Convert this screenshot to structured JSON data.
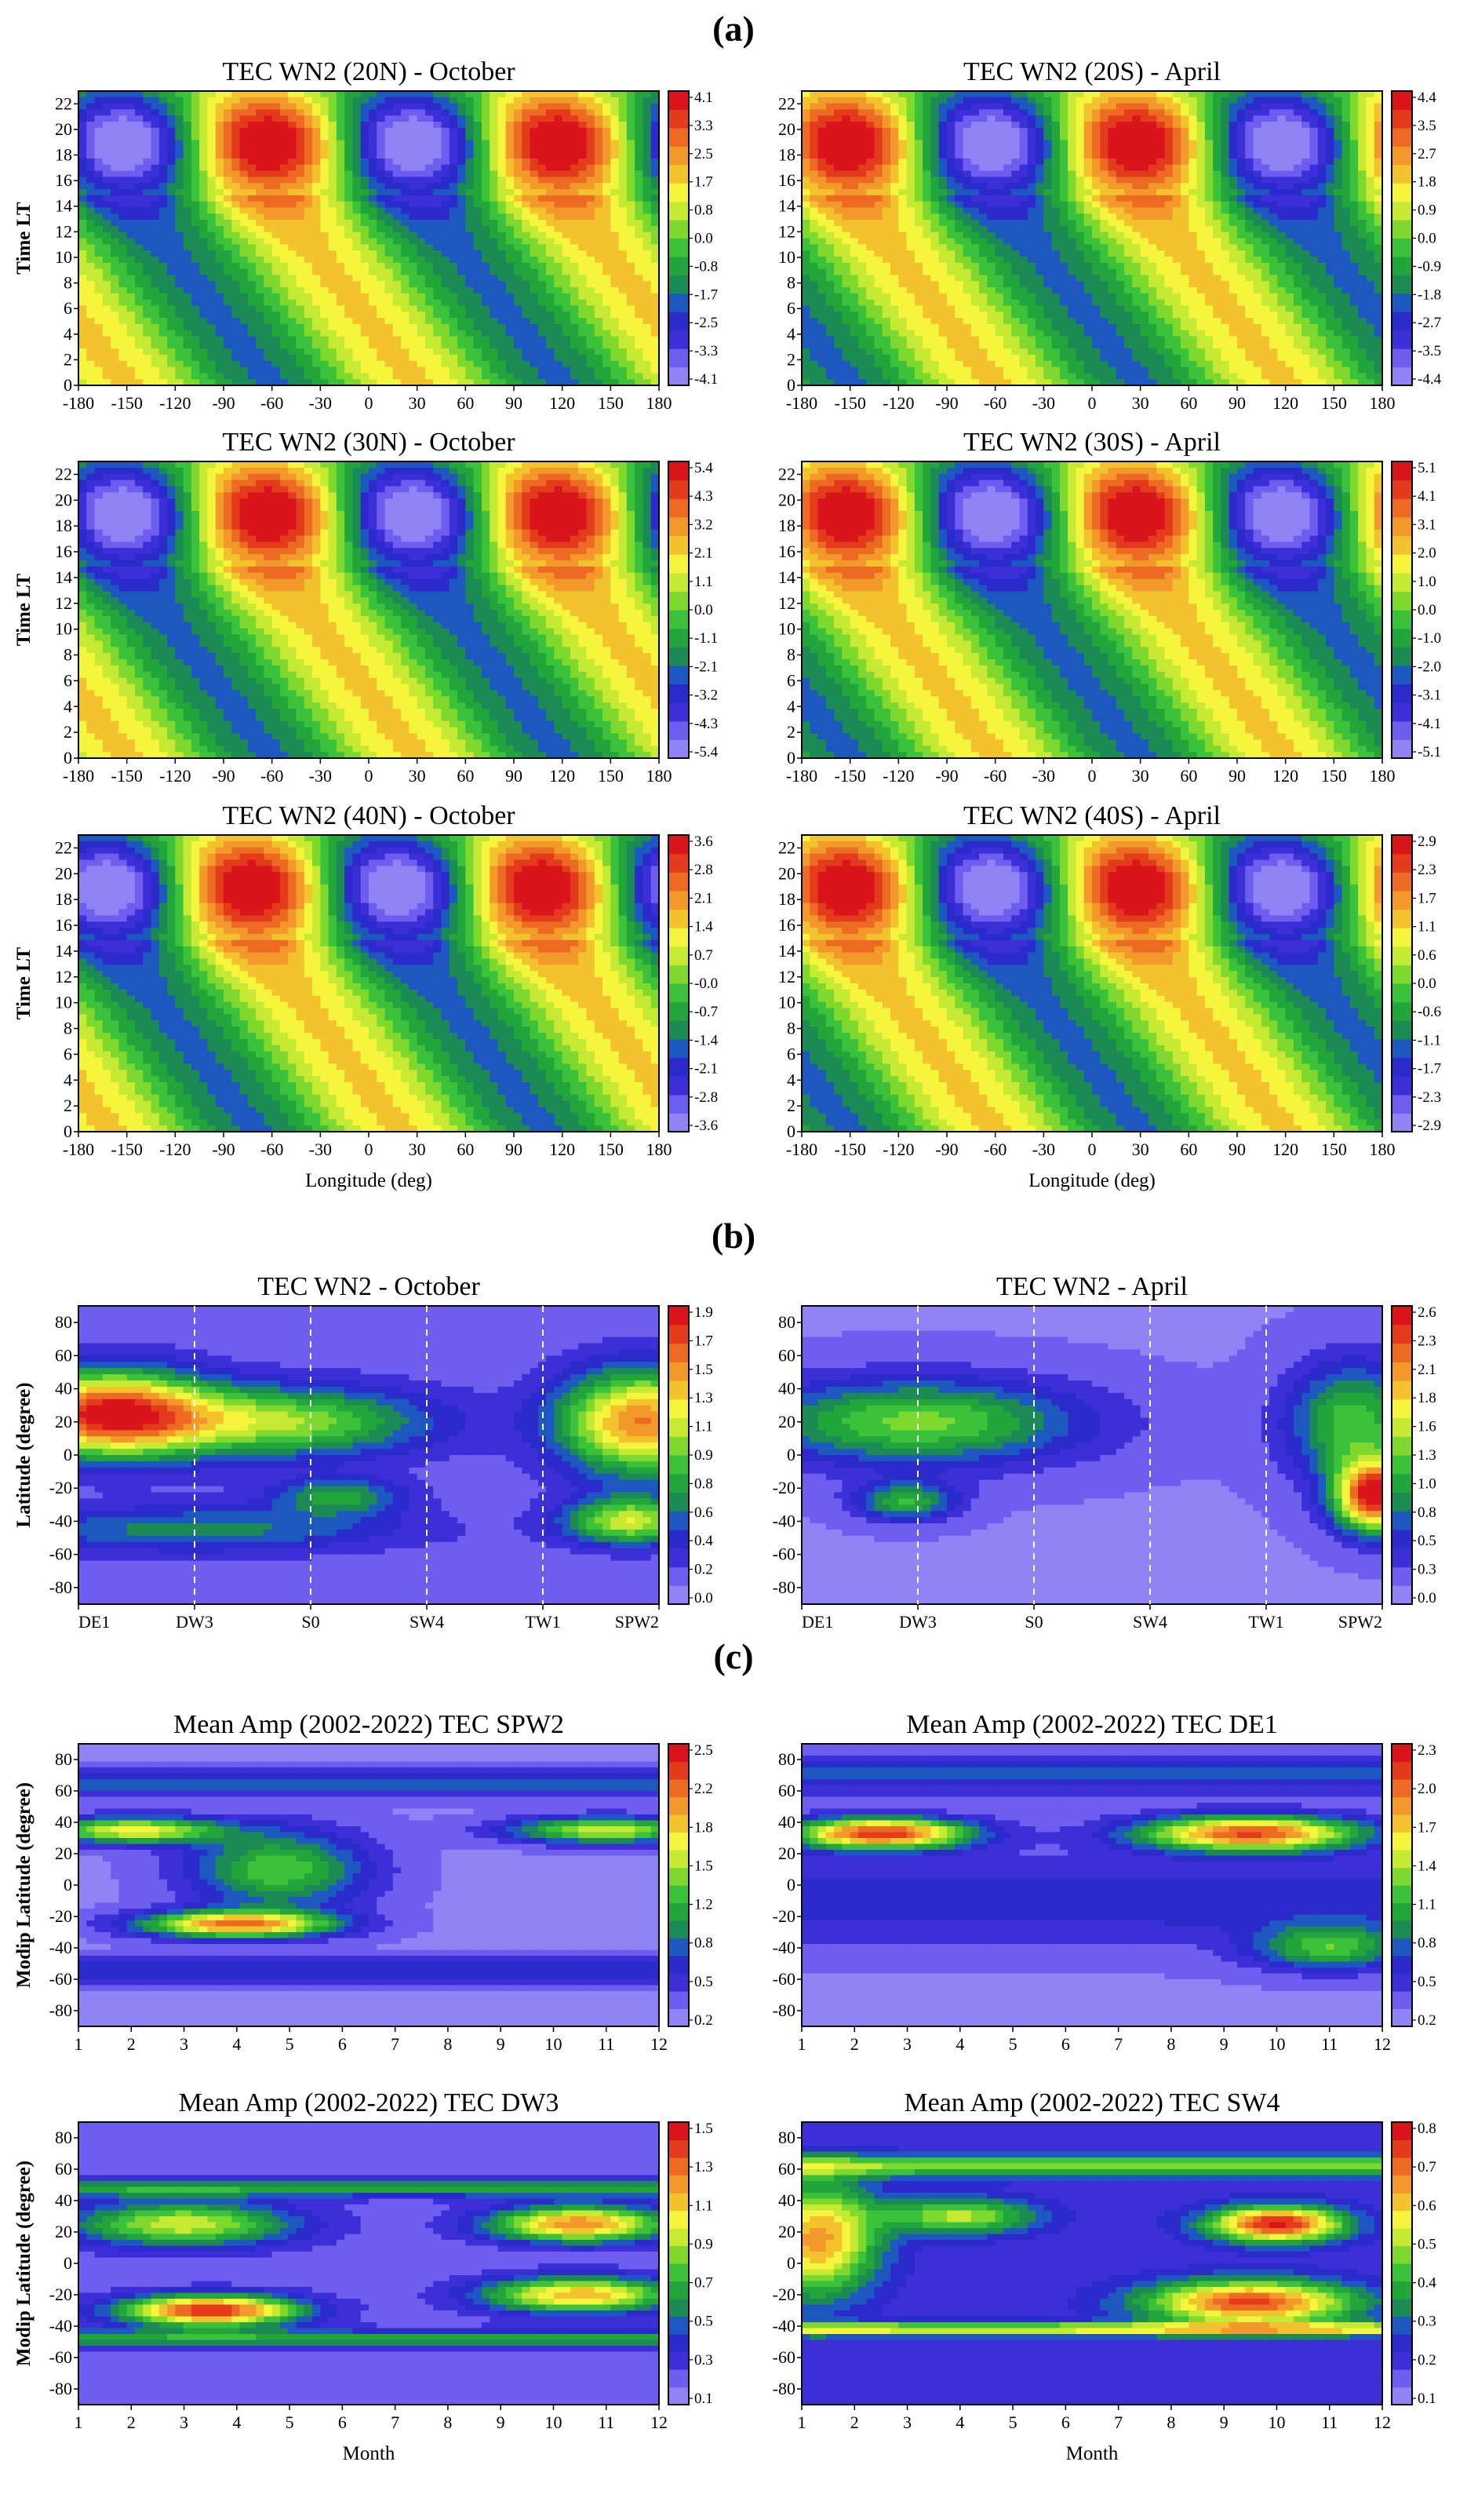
{
  "figure": {
    "section_labels": [
      "(a)",
      "(b)",
      "(c)"
    ]
  },
  "chart_data": [
    {
      "type": "heatmap",
      "title": "TEC WN2 (20N) - October",
      "ylabel": "Time LT",
      "xlabel": "",
      "xlim": [
        -180,
        180
      ],
      "ylim": [
        0,
        23
      ],
      "xticks": [
        "-180",
        "-150",
        "-120",
        "-90",
        "-60",
        "-30",
        "0",
        "30",
        "60",
        "90",
        "120",
        "150",
        "180"
      ],
      "yticks": [
        "0",
        "2",
        "4",
        "6",
        "8",
        "10",
        "12",
        "14",
        "16",
        "18",
        "20",
        "22"
      ],
      "colorbar": {
        "min": -4.1,
        "max": 4.1,
        "labels": [
          "-4.1",
          "-3.3",
          "-2.5",
          "-1.7",
          "-0.8",
          "0.0",
          "0.8",
          "1.7",
          "2.5",
          "3.3",
          "4.1"
        ]
      },
      "pattern": {
        "kind": "lt",
        "amp": 4.1,
        "phase": -60
      }
    },
    {
      "type": "heatmap",
      "title": "TEC WN2 (20S) - April",
      "ylabel": "",
      "xlabel": "",
      "xlim": [
        -180,
        180
      ],
      "ylim": [
        0,
        23
      ],
      "xticks": [
        "-180",
        "-150",
        "-120",
        "-90",
        "-60",
        "-30",
        "0",
        "30",
        "60",
        "90",
        "120",
        "150",
        "180"
      ],
      "yticks": [
        "0",
        "2",
        "4",
        "6",
        "8",
        "10",
        "12",
        "14",
        "16",
        "18",
        "20",
        "22"
      ],
      "colorbar": {
        "min": -4.4,
        "max": 4.4,
        "labels": [
          "-4.4",
          "-3.5",
          "-2.7",
          "-1.8",
          "-0.9",
          "0.0",
          "0.9",
          "1.8",
          "2.7",
          "3.5",
          "4.4"
        ]
      },
      "pattern": {
        "kind": "lt",
        "amp": 4.4,
        "phase": -150
      }
    },
    {
      "type": "heatmap",
      "title": "TEC WN2 (30N) - October",
      "ylabel": "Time LT",
      "xlabel": "",
      "xlim": [
        -180,
        180
      ],
      "ylim": [
        0,
        23
      ],
      "xticks": [
        "-180",
        "-150",
        "-120",
        "-90",
        "-60",
        "-30",
        "0",
        "30",
        "60",
        "90",
        "120",
        "150",
        "180"
      ],
      "yticks": [
        "0",
        "2",
        "4",
        "6",
        "8",
        "10",
        "12",
        "14",
        "16",
        "18",
        "20",
        "22"
      ],
      "colorbar": {
        "min": -5.4,
        "max": 5.4,
        "labels": [
          "-5.4",
          "-4.3",
          "-3.2",
          "-2.1",
          "-1.1",
          "0.0",
          "1.1",
          "2.1",
          "3.2",
          "4.3",
          "5.4"
        ]
      },
      "pattern": {
        "kind": "lt",
        "amp": 5.4,
        "phase": -60
      }
    },
    {
      "type": "heatmap",
      "title": "TEC WN2 (30S) - April",
      "ylabel": "",
      "xlabel": "",
      "xlim": [
        -180,
        180
      ],
      "ylim": [
        0,
        23
      ],
      "xticks": [
        "-180",
        "-150",
        "-120",
        "-90",
        "-60",
        "-30",
        "0",
        "30",
        "60",
        "90",
        "120",
        "150",
        "180"
      ],
      "yticks": [
        "0",
        "2",
        "4",
        "6",
        "8",
        "10",
        "12",
        "14",
        "16",
        "18",
        "20",
        "22"
      ],
      "colorbar": {
        "min": -5.1,
        "max": 5.1,
        "labels": [
          "-5.1",
          "-4.1",
          "-3.1",
          "-2.0",
          "-1.0",
          "0.0",
          "1.0",
          "2.0",
          "3.1",
          "4.1",
          "5.1"
        ]
      },
      "pattern": {
        "kind": "lt",
        "amp": 5.1,
        "phase": -150
      }
    },
    {
      "type": "heatmap",
      "title": "TEC WN2 (40N) - October",
      "ylabel": "Time LT",
      "xlabel": "Longitude (deg)",
      "xlim": [
        -180,
        180
      ],
      "ylim": [
        0,
        23
      ],
      "xticks": [
        "-180",
        "-150",
        "-120",
        "-90",
        "-60",
        "-30",
        "0",
        "30",
        "60",
        "90",
        "120",
        "150",
        "180"
      ],
      "yticks": [
        "0",
        "2",
        "4",
        "6",
        "8",
        "10",
        "12",
        "14",
        "16",
        "18",
        "20",
        "22"
      ],
      "colorbar": {
        "min": -3.6,
        "max": 3.6,
        "labels": [
          "-3.6",
          "-2.8",
          "-2.1",
          "-1.4",
          "-0.7",
          "-0.0",
          "0.7",
          "1.4",
          "2.1",
          "2.8",
          "3.6"
        ]
      },
      "pattern": {
        "kind": "lt",
        "amp": 3.6,
        "phase": -70
      }
    },
    {
      "type": "heatmap",
      "title": "TEC WN2 (40S) - April",
      "ylabel": "",
      "xlabel": "Longitude (deg)",
      "xlim": [
        -180,
        180
      ],
      "ylim": [
        0,
        23
      ],
      "xticks": [
        "-180",
        "-150",
        "-120",
        "-90",
        "-60",
        "-30",
        "0",
        "30",
        "60",
        "90",
        "120",
        "150",
        "180"
      ],
      "yticks": [
        "0",
        "2",
        "4",
        "6",
        "8",
        "10",
        "12",
        "14",
        "16",
        "18",
        "20",
        "22"
      ],
      "colorbar": {
        "min": -2.9,
        "max": 2.9,
        "labels": [
          "-2.9",
          "-2.3",
          "-1.7",
          "-1.1",
          "-0.6",
          "0.0",
          "0.6",
          "1.1",
          "1.7",
          "2.3",
          "2.9"
        ]
      },
      "pattern": {
        "kind": "lt",
        "amp": 2.9,
        "phase": -150
      }
    },
    {
      "type": "heatmap",
      "title": "TEC WN2 - October",
      "ylabel": "Latitude (degree)",
      "xlabel": "",
      "ylim": [
        -90,
        90
      ],
      "xticks": [
        "DE1",
        "DW3",
        "S0",
        "SW4",
        "TW1",
        "SPW2"
      ],
      "yticks": [
        "-80",
        "-60",
        "-40",
        "-20",
        "0",
        "20",
        "40",
        "60",
        "80"
      ],
      "colorbar": {
        "min": 0.0,
        "max": 2.0,
        "labels": [
          "0.0",
          "0.2",
          "0.4",
          "0.6",
          "0.8",
          "0.9",
          "1.1",
          "1.3",
          "1.5",
          "1.7",
          "1.9"
        ]
      },
      "pattern": {
        "kind": "spec",
        "amp": 1.9,
        "mode": 0
      }
    },
    {
      "type": "heatmap",
      "title": "TEC WN2 - April",
      "ylabel": "",
      "xlabel": "",
      "ylim": [
        -90,
        90
      ],
      "xticks": [
        "DE1",
        "DW3",
        "S0",
        "SW4",
        "TW1",
        "SPW2"
      ],
      "yticks": [
        "-80",
        "-60",
        "-40",
        "-20",
        "0",
        "20",
        "40",
        "60",
        "80"
      ],
      "colorbar": {
        "min": 0.0,
        "max": 2.8,
        "labels": [
          "0.0",
          "0.3",
          "0.5",
          "0.8",
          "1.0",
          "1.3",
          "1.6",
          "1.8",
          "2.1",
          "2.3",
          "2.6"
        ]
      },
      "pattern": {
        "kind": "spec",
        "amp": 2.6,
        "mode": 1
      }
    },
    {
      "type": "heatmap",
      "title": "Mean Amp (2002-2022) TEC SPW2",
      "ylabel": "Modip Latitude (degree)",
      "xlabel": "",
      "xlim": [
        1,
        12
      ],
      "ylim": [
        -90,
        90
      ],
      "xticks": [
        "1",
        "2",
        "3",
        "4",
        "5",
        "6",
        "7",
        "8",
        "9",
        "10",
        "11",
        "12"
      ],
      "yticks": [
        "-80",
        "-60",
        "-40",
        "-20",
        "0",
        "20",
        "40",
        "60",
        "80"
      ],
      "colorbar": {
        "min": 0.0,
        "max": 2.7,
        "labels": [
          "0.2",
          "0.5",
          "0.8",
          "1.2",
          "1.5",
          "1.8",
          "2.2",
          "2.5"
        ]
      },
      "pattern": {
        "kind": "month",
        "amp": 2.5,
        "mode": 0
      }
    },
    {
      "type": "heatmap",
      "title": "Mean Amp (2002-2022) TEC DE1",
      "ylabel": "",
      "xlabel": "",
      "xlim": [
        1,
        12
      ],
      "ylim": [
        -90,
        90
      ],
      "xticks": [
        "1",
        "2",
        "3",
        "4",
        "5",
        "6",
        "7",
        "8",
        "9",
        "10",
        "11",
        "12"
      ],
      "yticks": [
        "-80",
        "-60",
        "-40",
        "-20",
        "0",
        "20",
        "40",
        "60",
        "80"
      ],
      "colorbar": {
        "min": 0.0,
        "max": 2.4,
        "labels": [
          "0.2",
          "0.5",
          "0.8",
          "1.1",
          "1.4",
          "1.7",
          "2.0",
          "2.3"
        ]
      },
      "pattern": {
        "kind": "month",
        "amp": 2.3,
        "mode": 1
      }
    },
    {
      "type": "heatmap",
      "title": "Mean Amp (2002-2022) TEC DW3",
      "ylabel": "Modip Latitude (degree)",
      "xlabel": "Month",
      "xlim": [
        1,
        12
      ],
      "ylim": [
        -90,
        90
      ],
      "xticks": [
        "1",
        "2",
        "3",
        "4",
        "5",
        "6",
        "7",
        "8",
        "9",
        "10",
        "11",
        "12"
      ],
      "yticks": [
        "-80",
        "-60",
        "-40",
        "-20",
        "0",
        "20",
        "40",
        "60",
        "80"
      ],
      "colorbar": {
        "min": 0.0,
        "max": 1.6,
        "labels": [
          "0.1",
          "0.3",
          "0.5",
          "0.7",
          "0.9",
          "1.1",
          "1.3",
          "1.5"
        ]
      },
      "pattern": {
        "kind": "month",
        "amp": 1.5,
        "mode": 2
      }
    },
    {
      "type": "heatmap",
      "title": "Mean Amp (2002-2022) TEC SW4",
      "ylabel": "",
      "xlabel": "Month",
      "xlim": [
        1,
        12
      ],
      "ylim": [
        -90,
        90
      ],
      "xticks": [
        "1",
        "2",
        "3",
        "4",
        "5",
        "6",
        "7",
        "8",
        "9",
        "10",
        "11",
        "12"
      ],
      "yticks": [
        "-80",
        "-60",
        "-40",
        "-20",
        "0",
        "20",
        "40",
        "60",
        "80"
      ],
      "colorbar": {
        "min": 0.0,
        "max": 0.85,
        "labels": [
          "0.1",
          "0.2",
          "0.3",
          "0.4",
          "0.5",
          "0.6",
          "0.7",
          "0.8"
        ]
      },
      "pattern": {
        "kind": "month",
        "amp": 0.8,
        "mode": 3
      }
    }
  ]
}
